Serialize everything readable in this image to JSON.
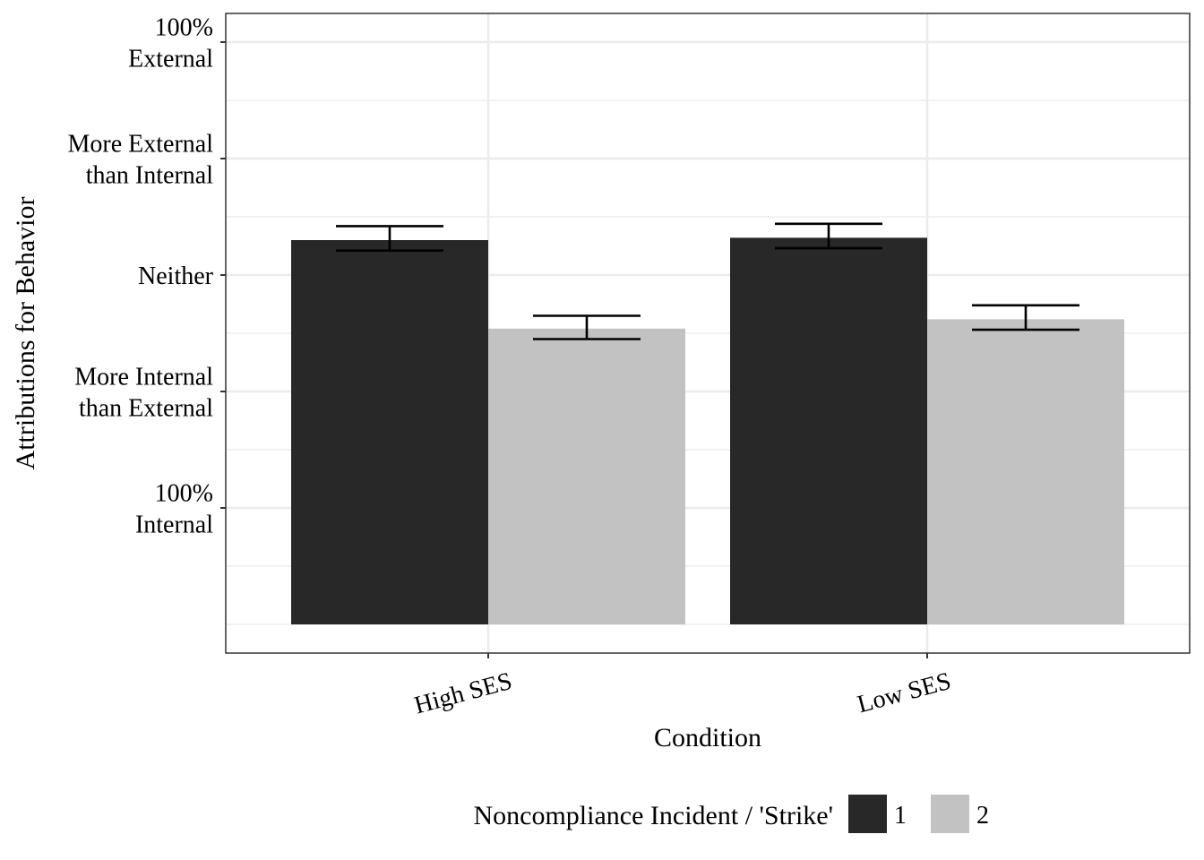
{
  "chart_data": {
    "type": "bar",
    "xlabel": "Condition",
    "ylabel": "Attributions for Behavior",
    "categories": [
      "High SES",
      "Low SES"
    ],
    "ylim": [
      0,
      5.25
    ],
    "grid": true,
    "y_ticks": [
      {
        "value": 1,
        "lines": [
          "100%",
          "Internal"
        ]
      },
      {
        "value": 2,
        "lines": [
          "More Internal",
          "than External"
        ]
      },
      {
        "value": 3,
        "lines": [
          "Neither"
        ]
      },
      {
        "value": 4,
        "lines": [
          "More External",
          "than Internal"
        ]
      },
      {
        "value": 5,
        "lines": [
          "100%",
          "External"
        ]
      }
    ],
    "legend": {
      "title": "Noncompliance Incident / 'Strike'",
      "position": "bottom",
      "entries": [
        {
          "label": "1",
          "color": "#282828"
        },
        {
          "label": "2",
          "color": "#c2c2c2"
        }
      ]
    },
    "series": [
      {
        "name": "1",
        "color": "#282828",
        "values": [
          3.3,
          3.32
        ],
        "error_low": [
          3.21,
          3.23
        ],
        "error_high": [
          3.42,
          3.44
        ]
      },
      {
        "name": "2",
        "color": "#c2c2c2",
        "values": [
          2.54,
          2.62
        ],
        "error_low": [
          2.45,
          2.53
        ],
        "error_high": [
          2.65,
          2.74
        ]
      }
    ]
  }
}
